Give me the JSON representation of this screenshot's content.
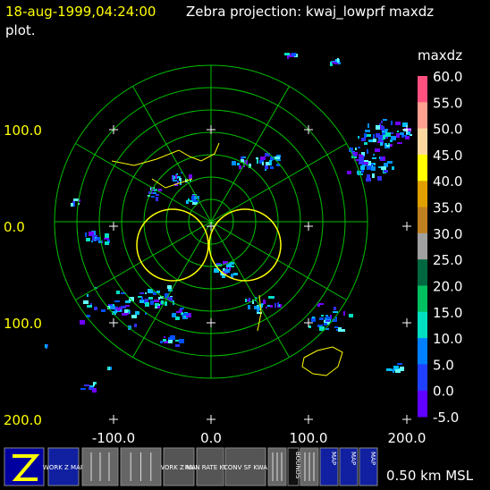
{
  "header": {
    "time": "18-aug-1999,04:24:00",
    "title": "Zebra projection: kwaj_lowprf maxdz",
    "title_cont": "plot."
  },
  "axes": {
    "y_labels": [
      "100.0",
      "0.0",
      "100.0",
      "200.0"
    ],
    "x_labels": [
      "-100.0",
      "0.0",
      "100.0",
      "200.0"
    ]
  },
  "colorbar": {
    "field": "maxdz",
    "labels": [
      "60.0",
      "55.0",
      "50.0",
      "45.0",
      "40.0",
      "35.0",
      "30.0",
      "25.0",
      "20.0",
      "15.0",
      "10.0",
      "5.0",
      "0.0",
      "-5.0"
    ]
  },
  "toolbar": {
    "icons": [
      {
        "label": "WORK Z MAP"
      },
      {
        "label": "WORK Z MAP"
      },
      {
        "label": "RAIN RATE KWAJ"
      },
      {
        "label": "CONV SF KWA"
      },
      {
        "label": "BOUNDS"
      },
      {
        "label": "MAP"
      },
      {
        "label": "MAP"
      },
      {
        "label": "MAP"
      }
    ],
    "altitude": "0.50 km MSL"
  }
}
